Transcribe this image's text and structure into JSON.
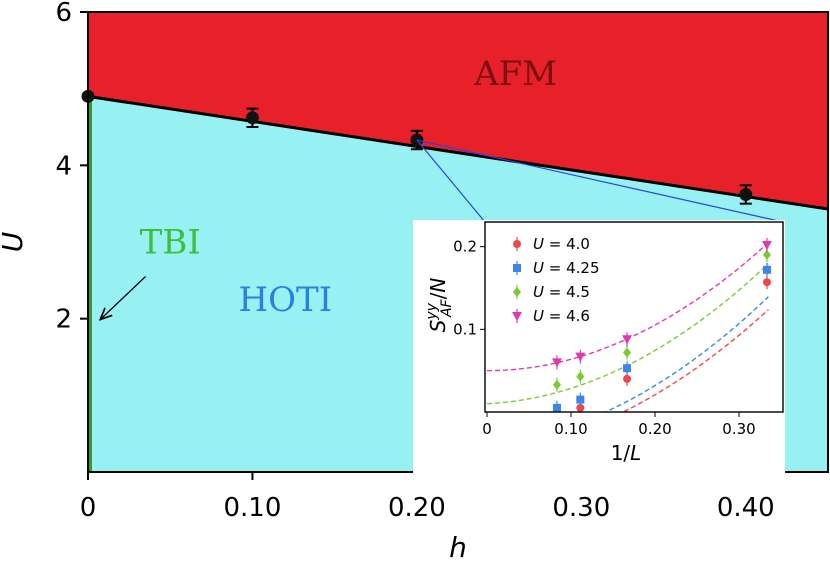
{
  "chart_data": {
    "type": "phase-diagram",
    "main": {
      "xlabel": "h",
      "ylabel": "U",
      "xlim": [
        0,
        0.45
      ],
      "ylim": [
        0,
        6
      ],
      "xticks": [
        0,
        0.1,
        0.2,
        0.3,
        0.4
      ],
      "xtick_labels": [
        "0",
        "0.10",
        "0.20",
        "0.30",
        "0.40"
      ],
      "yticks": [
        2,
        4,
        6
      ],
      "ytick_labels": [
        "2",
        "4",
        "6"
      ],
      "boundary": {
        "h": [
          0,
          0.1,
          0.2,
          0.4
        ],
        "U": [
          4.9,
          4.62,
          4.33,
          3.62
        ],
        "err": [
          0,
          0.12,
          0.12,
          0.12
        ],
        "line": [
          [
            0,
            4.9
          ],
          [
            0.45,
            3.43
          ]
        ]
      },
      "regions": [
        {
          "name": "AFM",
          "color": "#e8202a",
          "label_color": "#7a1010",
          "label_at": [
            0.26,
            5.05
          ]
        },
        {
          "name": "HOTI",
          "color": "#97f1f3",
          "label_color": "#2a7fe0",
          "label_at": [
            0.12,
            2.1
          ]
        },
        {
          "name": "TBI",
          "color": "#2e9e2e",
          "label_color": "#3cc03c",
          "label_at": [
            0.05,
            2.85
          ]
        }
      ],
      "tbi_line": {
        "h": 0,
        "U": [
          0,
          4.9
        ]
      },
      "arrow": {
        "from": [
          0.035,
          2.55
        ],
        "to": [
          0.008,
          2.0
        ]
      }
    },
    "inset": {
      "xlabel": "1/L",
      "ylabel": "S^{yy}_{AF}/N",
      "xlim": [
        0,
        0.35
      ],
      "ylim": [
        0,
        0.225
      ],
      "xticks": [
        0,
        0.1,
        0.2,
        0.3
      ],
      "xtick_labels": [
        "0",
        "0.10",
        "0.20",
        "0.30"
      ],
      "yticks": [
        0.1,
        0.2
      ],
      "ytick_labels": [
        "0.1",
        "0.2"
      ],
      "series": [
        {
          "name": "U = 4.0",
          "marker": "circle",
          "color": "#f0464a",
          "x": [
            0.0833,
            0.1111,
            0.1667,
            0.3333
          ],
          "y": [
            -0.001,
            0.005,
            0.04,
            0.157
          ],
          "fit": [
            -0.05,
            0.11,
            1.22
          ]
        },
        {
          "name": "U = 4.25",
          "marker": "square",
          "color": "#3c86e6",
          "x": [
            0.0833,
            0.1111,
            0.1667,
            0.3333
          ],
          "y": [
            0.005,
            0.015,
            0.053,
            0.172
          ],
          "fit": [
            -0.04,
            0.1,
            1.3
          ]
        },
        {
          "name": "U = 4.5",
          "marker": "diamond",
          "color": "#78cc2e",
          "x": [
            0.0833,
            0.1111,
            0.1667,
            0.3333
          ],
          "y": [
            0.033,
            0.043,
            0.072,
            0.19
          ],
          "fit": [
            0.01,
            0.05,
            1.36
          ]
        },
        {
          "name": "U = 4.6",
          "marker": "triangle-down",
          "color": "#e03aaa",
          "x": [
            0.0833,
            0.1111,
            0.1667,
            0.3333
          ],
          "y": [
            0.06,
            0.067,
            0.088,
            0.202
          ],
          "fit": [
            0.05,
            0.0,
            1.38
          ]
        }
      ]
    }
  }
}
